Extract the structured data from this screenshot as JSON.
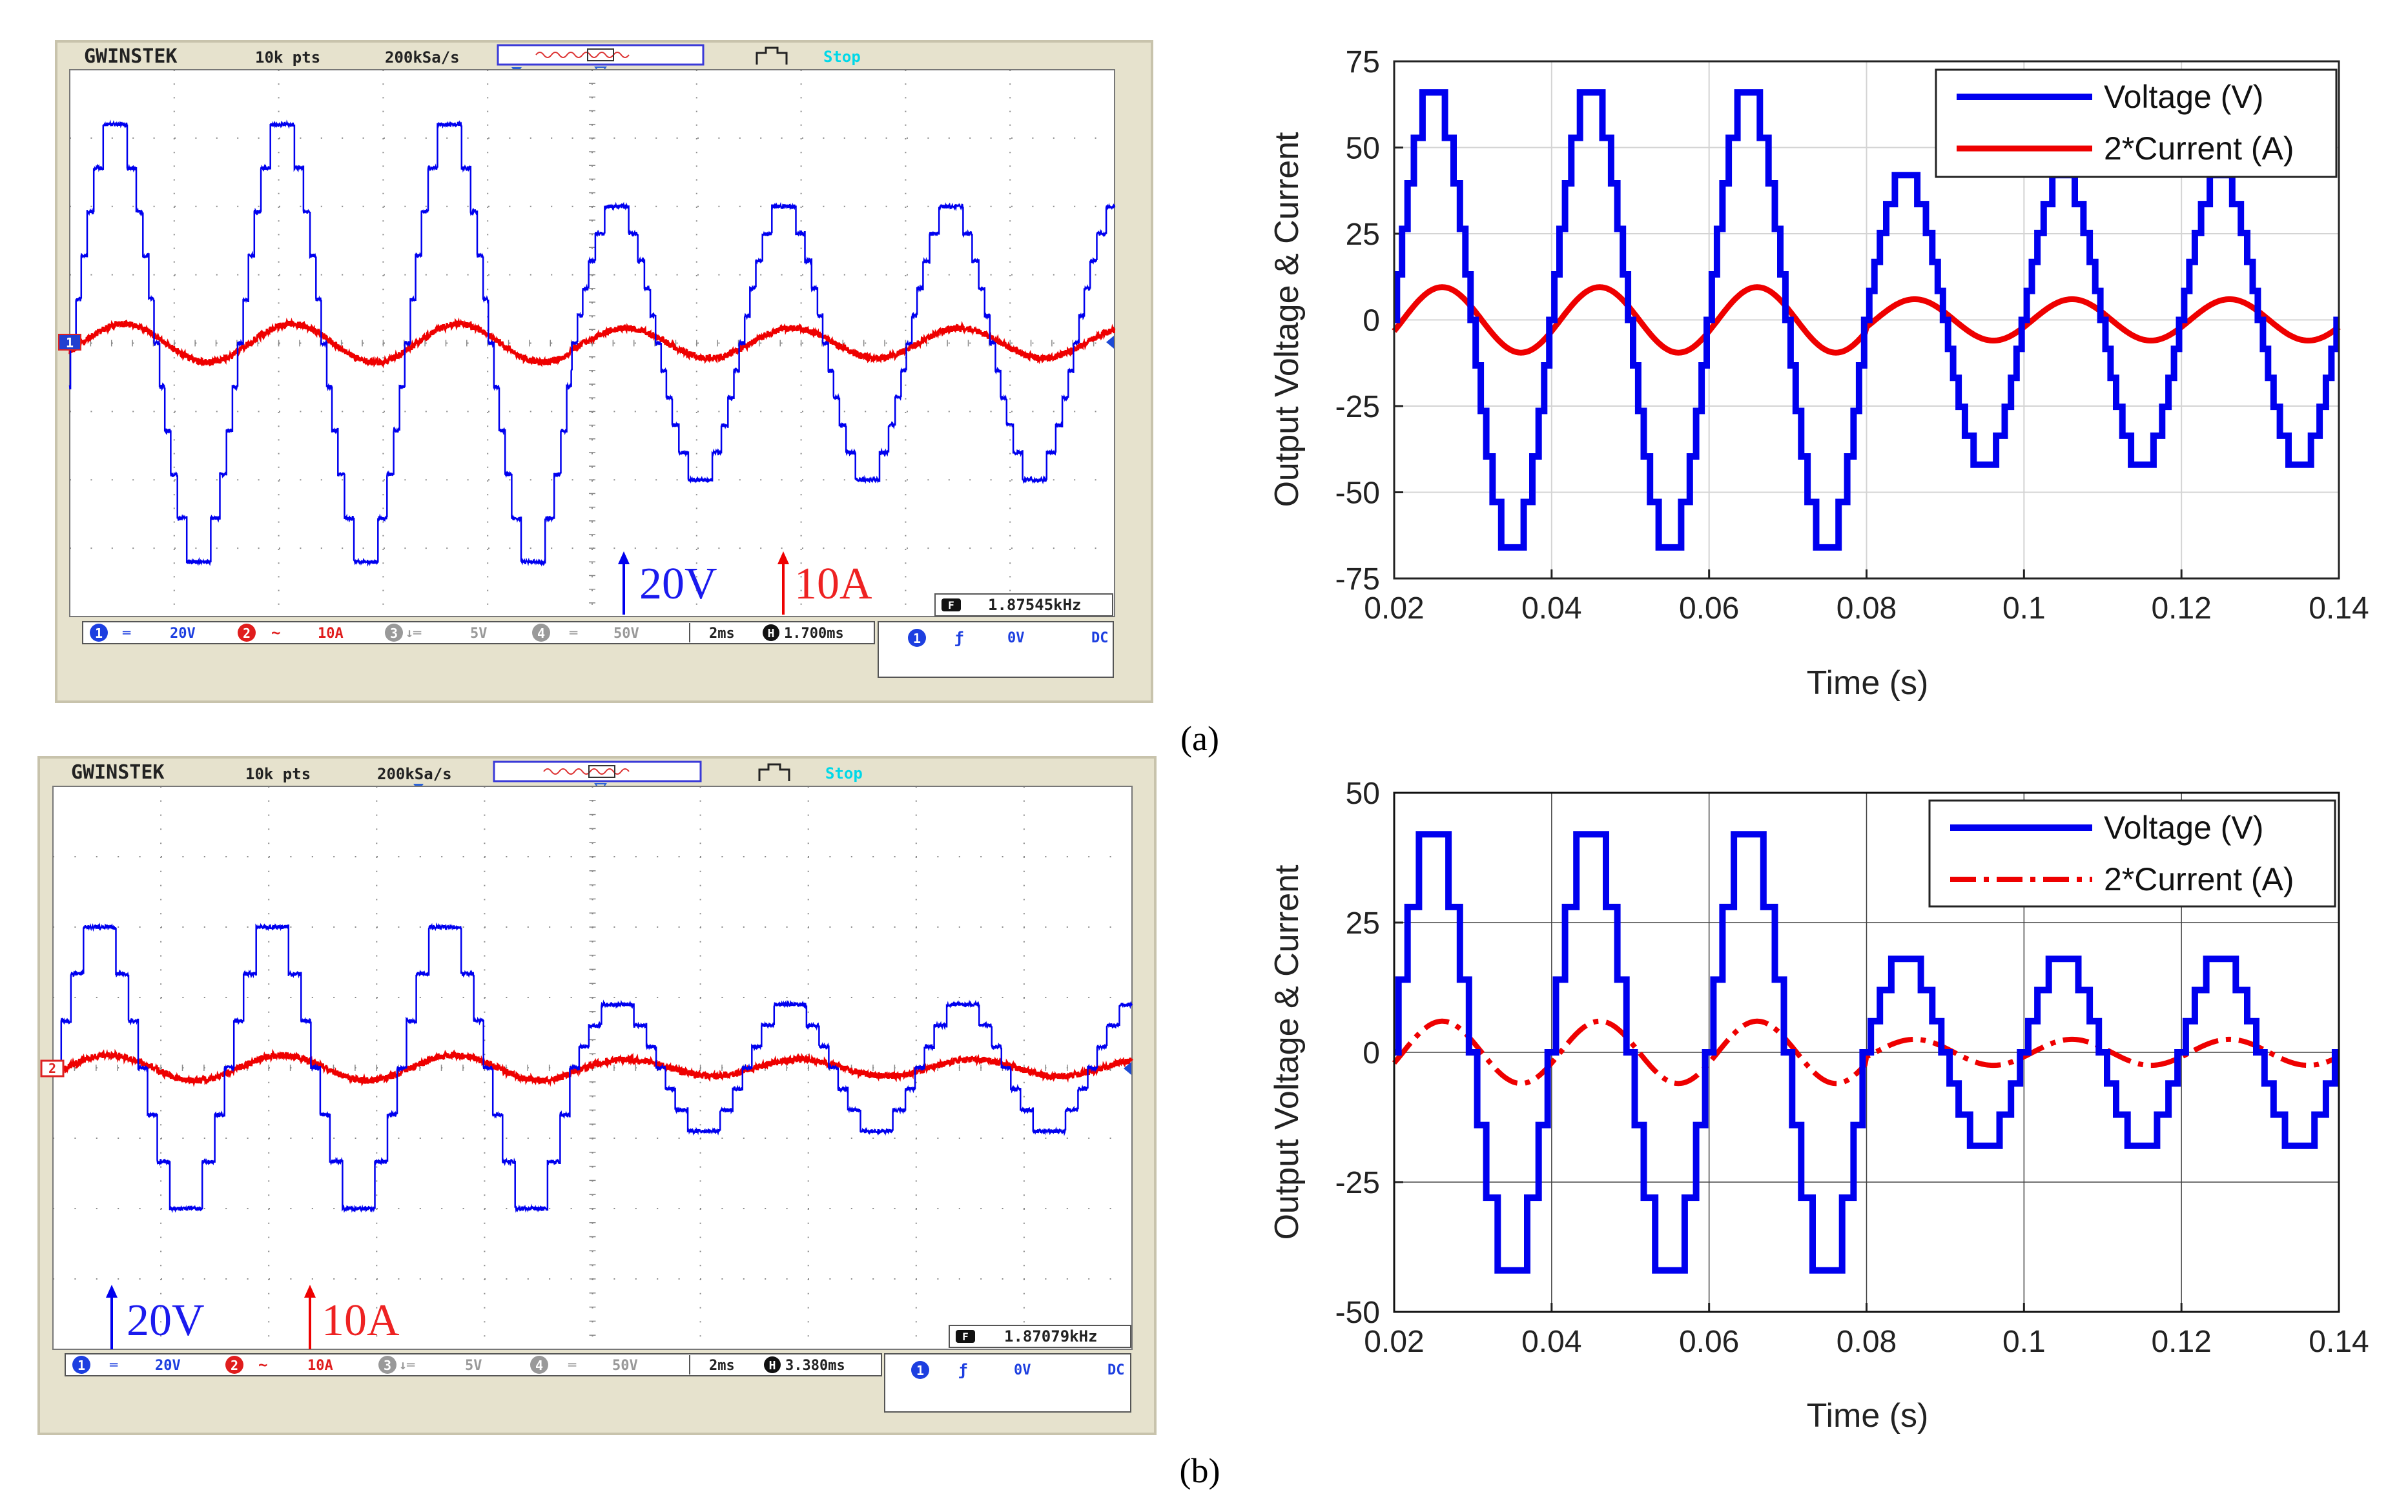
{
  "colors": {
    "voltage": "#0000ee",
    "current": "#ee0000",
    "scope_frame": "#e6e2cd",
    "grid": "#7c7c7c",
    "cyan": "#00d8e8"
  },
  "panel_labels": {
    "a": "(a)",
    "b": "(b)"
  },
  "scopes": [
    {
      "id": "a",
      "header": {
        "brand": "GWINSTEK",
        "points": "10k pts",
        "rate": "200kSa/s",
        "state": "Stop"
      },
      "channel_marker": "1",
      "bottom": {
        "ch1_label": "1",
        "ch1_scale": "20V",
        "ch2_label": "2",
        "ch2_scale": "10A",
        "ch3_label": "3",
        "ch3_scale": "5V",
        "ch4_label": "4",
        "ch4_scale": "50V",
        "timebase": "2ms",
        "hpos": "1.700ms",
        "trig_ch": "1",
        "trig_level": "0V",
        "coupling": "DC"
      },
      "freq": "1.87545kHz",
      "annotations": {
        "voltage": "20V",
        "current": "10A"
      },
      "voltage_amplitudes": [
        3.2,
        3.2,
        3.2,
        2.0,
        2.0,
        2.0
      ],
      "current_amplitude": 0.28,
      "current_amplitudes_late": 0.22
    },
    {
      "id": "b",
      "header": {
        "brand": "GWINSTEK",
        "points": "10k pts",
        "rate": "200kSa/s",
        "state": "Stop"
      },
      "channel_marker": "2",
      "bottom": {
        "ch1_label": "1",
        "ch1_scale": "20V",
        "ch2_label": "2",
        "ch2_scale": "10A",
        "ch3_label": "3",
        "ch3_scale": "5V",
        "ch4_label": "4",
        "ch4_scale": "50V",
        "timebase": "2ms",
        "hpos": "3.380ms",
        "trig_ch": "1",
        "trig_level": "0V",
        "coupling": "DC"
      },
      "freq": "1.87079kHz",
      "annotations": {
        "voltage": "20V",
        "current": "10A"
      },
      "voltage_amplitudes": [
        2.0,
        2.0,
        2.0,
        0.9,
        0.9,
        0.9
      ],
      "current_amplitude": 0.18,
      "current_amplitudes_late": 0.12
    }
  ],
  "chart_data": [
    {
      "type": "line",
      "panel": "a",
      "xlabel": "Time (s)",
      "ylabel": "Output Voltage & Current",
      "xlim": [
        0.02,
        0.14
      ],
      "ylim": [
        -75,
        75
      ],
      "xticks": [
        0.02,
        0.04,
        0.06,
        0.08,
        0.1,
        0.12,
        0.14
      ],
      "xtick_labels": [
        "0.02",
        "0.04",
        "0.06",
        "0.08",
        "0.1",
        "0.12",
        "0.14"
      ],
      "yticks": [
        -75,
        -50,
        -25,
        0,
        25,
        50,
        75
      ],
      "ytick_labels": [
        "-75",
        "-50",
        "-25",
        "0",
        "25",
        "50",
        "75"
      ],
      "frequency_hz": 50,
      "step_change_at": 0.08,
      "grid": true,
      "legend_position": "top-right",
      "series": [
        {
          "name": "Voltage (V)",
          "style": "staircase",
          "peak_before": 66,
          "peak_after": 42,
          "levels": 11
        },
        {
          "name": "2*Current (A)",
          "style": "sine",
          "peak_before": 9.5,
          "peak_after": 6,
          "phase_lag_deg": 20
        }
      ]
    },
    {
      "type": "line",
      "panel": "b",
      "xlabel": "Time (s)",
      "ylabel": "Output Voltage & Current",
      "xlim": [
        0.02,
        0.14
      ],
      "ylim": [
        -50,
        50
      ],
      "xticks": [
        0.02,
        0.04,
        0.06,
        0.08,
        0.1,
        0.12,
        0.14
      ],
      "xtick_labels": [
        "0.02",
        "0.04",
        "0.06",
        "0.08",
        "0.1",
        "0.12",
        "0.14"
      ],
      "yticks": [
        -50,
        -25,
        0,
        25,
        50
      ],
      "ytick_labels": [
        "-50",
        "-25",
        "0",
        "25",
        "50"
      ],
      "frequency_hz": 50,
      "step_change_at": 0.08,
      "grid": true,
      "legend_position": "top-right",
      "series": [
        {
          "name": "Voltage (V)",
          "style": "staircase",
          "peak_before": 42,
          "peak_after": 18,
          "levels": 7
        },
        {
          "name": "2*Current (A)",
          "style": "sine-dashdot",
          "peak_before": 6,
          "peak_after": 2.5,
          "phase_lag_deg": 20
        }
      ]
    }
  ]
}
